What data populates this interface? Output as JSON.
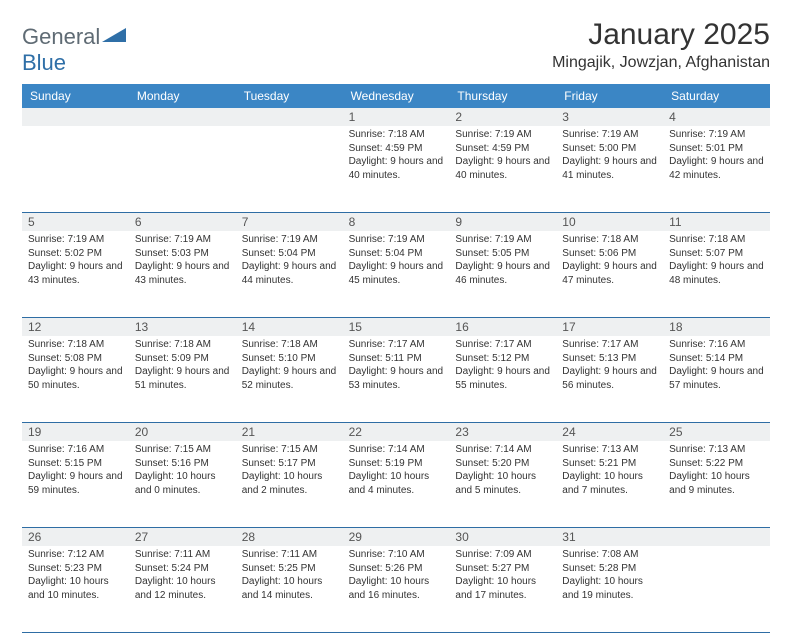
{
  "brand": {
    "name_part1": "General",
    "name_part2": "Blue"
  },
  "title": "January 2025",
  "location": "Mingajik, Jowzjan, Afghanistan",
  "colors": {
    "header_bg": "#3b86c5",
    "header_text": "#ffffff",
    "daynum_bg": "#eef0f1",
    "row_border": "#2e6da4",
    "body_text": "#333333",
    "logo_gray": "#5f6b74",
    "logo_blue": "#2f6fa7"
  },
  "weekdays": [
    "Sunday",
    "Monday",
    "Tuesday",
    "Wednesday",
    "Thursday",
    "Friday",
    "Saturday"
  ],
  "weeks": [
    [
      {
        "n": "",
        "sunrise": "",
        "sunset": "",
        "daylight": ""
      },
      {
        "n": "",
        "sunrise": "",
        "sunset": "",
        "daylight": ""
      },
      {
        "n": "",
        "sunrise": "",
        "sunset": "",
        "daylight": ""
      },
      {
        "n": "1",
        "sunrise": "Sunrise: 7:18 AM",
        "sunset": "Sunset: 4:59 PM",
        "daylight": "Daylight: 9 hours and 40 minutes."
      },
      {
        "n": "2",
        "sunrise": "Sunrise: 7:19 AM",
        "sunset": "Sunset: 4:59 PM",
        "daylight": "Daylight: 9 hours and 40 minutes."
      },
      {
        "n": "3",
        "sunrise": "Sunrise: 7:19 AM",
        "sunset": "Sunset: 5:00 PM",
        "daylight": "Daylight: 9 hours and 41 minutes."
      },
      {
        "n": "4",
        "sunrise": "Sunrise: 7:19 AM",
        "sunset": "Sunset: 5:01 PM",
        "daylight": "Daylight: 9 hours and 42 minutes."
      }
    ],
    [
      {
        "n": "5",
        "sunrise": "Sunrise: 7:19 AM",
        "sunset": "Sunset: 5:02 PM",
        "daylight": "Daylight: 9 hours and 43 minutes."
      },
      {
        "n": "6",
        "sunrise": "Sunrise: 7:19 AM",
        "sunset": "Sunset: 5:03 PM",
        "daylight": "Daylight: 9 hours and 43 minutes."
      },
      {
        "n": "7",
        "sunrise": "Sunrise: 7:19 AM",
        "sunset": "Sunset: 5:04 PM",
        "daylight": "Daylight: 9 hours and 44 minutes."
      },
      {
        "n": "8",
        "sunrise": "Sunrise: 7:19 AM",
        "sunset": "Sunset: 5:04 PM",
        "daylight": "Daylight: 9 hours and 45 minutes."
      },
      {
        "n": "9",
        "sunrise": "Sunrise: 7:19 AM",
        "sunset": "Sunset: 5:05 PM",
        "daylight": "Daylight: 9 hours and 46 minutes."
      },
      {
        "n": "10",
        "sunrise": "Sunrise: 7:18 AM",
        "sunset": "Sunset: 5:06 PM",
        "daylight": "Daylight: 9 hours and 47 minutes."
      },
      {
        "n": "11",
        "sunrise": "Sunrise: 7:18 AM",
        "sunset": "Sunset: 5:07 PM",
        "daylight": "Daylight: 9 hours and 48 minutes."
      }
    ],
    [
      {
        "n": "12",
        "sunrise": "Sunrise: 7:18 AM",
        "sunset": "Sunset: 5:08 PM",
        "daylight": "Daylight: 9 hours and 50 minutes."
      },
      {
        "n": "13",
        "sunrise": "Sunrise: 7:18 AM",
        "sunset": "Sunset: 5:09 PM",
        "daylight": "Daylight: 9 hours and 51 minutes."
      },
      {
        "n": "14",
        "sunrise": "Sunrise: 7:18 AM",
        "sunset": "Sunset: 5:10 PM",
        "daylight": "Daylight: 9 hours and 52 minutes."
      },
      {
        "n": "15",
        "sunrise": "Sunrise: 7:17 AM",
        "sunset": "Sunset: 5:11 PM",
        "daylight": "Daylight: 9 hours and 53 minutes."
      },
      {
        "n": "16",
        "sunrise": "Sunrise: 7:17 AM",
        "sunset": "Sunset: 5:12 PM",
        "daylight": "Daylight: 9 hours and 55 minutes."
      },
      {
        "n": "17",
        "sunrise": "Sunrise: 7:17 AM",
        "sunset": "Sunset: 5:13 PM",
        "daylight": "Daylight: 9 hours and 56 minutes."
      },
      {
        "n": "18",
        "sunrise": "Sunrise: 7:16 AM",
        "sunset": "Sunset: 5:14 PM",
        "daylight": "Daylight: 9 hours and 57 minutes."
      }
    ],
    [
      {
        "n": "19",
        "sunrise": "Sunrise: 7:16 AM",
        "sunset": "Sunset: 5:15 PM",
        "daylight": "Daylight: 9 hours and 59 minutes."
      },
      {
        "n": "20",
        "sunrise": "Sunrise: 7:15 AM",
        "sunset": "Sunset: 5:16 PM",
        "daylight": "Daylight: 10 hours and 0 minutes."
      },
      {
        "n": "21",
        "sunrise": "Sunrise: 7:15 AM",
        "sunset": "Sunset: 5:17 PM",
        "daylight": "Daylight: 10 hours and 2 minutes."
      },
      {
        "n": "22",
        "sunrise": "Sunrise: 7:14 AM",
        "sunset": "Sunset: 5:19 PM",
        "daylight": "Daylight: 10 hours and 4 minutes."
      },
      {
        "n": "23",
        "sunrise": "Sunrise: 7:14 AM",
        "sunset": "Sunset: 5:20 PM",
        "daylight": "Daylight: 10 hours and 5 minutes."
      },
      {
        "n": "24",
        "sunrise": "Sunrise: 7:13 AM",
        "sunset": "Sunset: 5:21 PM",
        "daylight": "Daylight: 10 hours and 7 minutes."
      },
      {
        "n": "25",
        "sunrise": "Sunrise: 7:13 AM",
        "sunset": "Sunset: 5:22 PM",
        "daylight": "Daylight: 10 hours and 9 minutes."
      }
    ],
    [
      {
        "n": "26",
        "sunrise": "Sunrise: 7:12 AM",
        "sunset": "Sunset: 5:23 PM",
        "daylight": "Daylight: 10 hours and 10 minutes."
      },
      {
        "n": "27",
        "sunrise": "Sunrise: 7:11 AM",
        "sunset": "Sunset: 5:24 PM",
        "daylight": "Daylight: 10 hours and 12 minutes."
      },
      {
        "n": "28",
        "sunrise": "Sunrise: 7:11 AM",
        "sunset": "Sunset: 5:25 PM",
        "daylight": "Daylight: 10 hours and 14 minutes."
      },
      {
        "n": "29",
        "sunrise": "Sunrise: 7:10 AM",
        "sunset": "Sunset: 5:26 PM",
        "daylight": "Daylight: 10 hours and 16 minutes."
      },
      {
        "n": "30",
        "sunrise": "Sunrise: 7:09 AM",
        "sunset": "Sunset: 5:27 PM",
        "daylight": "Daylight: 10 hours and 17 minutes."
      },
      {
        "n": "31",
        "sunrise": "Sunrise: 7:08 AM",
        "sunset": "Sunset: 5:28 PM",
        "daylight": "Daylight: 10 hours and 19 minutes."
      },
      {
        "n": "",
        "sunrise": "",
        "sunset": "",
        "daylight": ""
      }
    ]
  ]
}
